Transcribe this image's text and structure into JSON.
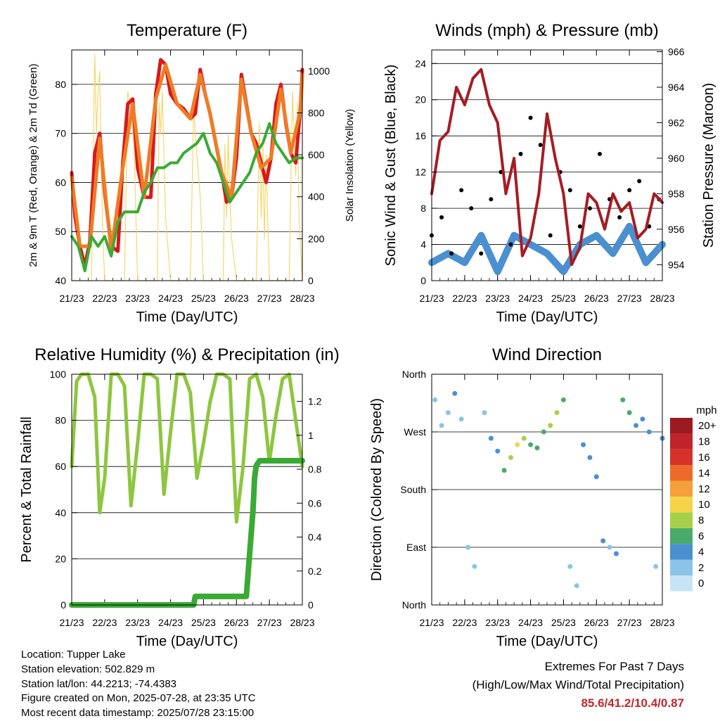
{
  "chart_data": [
    {
      "type": "line",
      "title": "Temperature (F)",
      "xlabel": "Time (Day/UTC)",
      "ylabel": "2m & 9m T (Red, Orange) & 2m Td (Green)",
      "ylabel_right": "Solar Insolation (Yellow)",
      "x_ticks": [
        "21/23",
        "22/23",
        "23/23",
        "24/23",
        "25/23",
        "26/23",
        "27/23",
        "28/23"
      ],
      "ylim": [
        40,
        87
      ],
      "y_ticks": [
        40,
        50,
        60,
        70,
        80
      ],
      "ylim_right": [
        0,
        1100
      ],
      "y_ticks_right": [
        0,
        200,
        400,
        600,
        800,
        1000
      ],
      "grid": "horizontal",
      "series": [
        {
          "name": "2m T",
          "color": "#d7191c",
          "x": [
            0,
            0.1,
            0.25,
            0.4,
            0.55,
            0.7,
            0.85,
            1.0,
            1.2,
            1.4,
            1.55,
            1.7,
            1.85,
            2.0,
            2.2,
            2.4,
            2.55,
            2.7,
            2.85,
            3.0,
            3.2,
            3.4,
            3.6,
            3.75,
            3.9,
            4.05,
            4.2,
            4.4,
            4.55,
            4.7,
            4.85,
            5.0,
            5.15,
            5.3,
            5.45,
            5.6,
            5.75,
            5.9,
            6.05,
            6.2,
            6.35,
            6.5,
            6.65,
            6.8,
            6.95,
            7.0
          ],
          "y": [
            62,
            53,
            47,
            43,
            48,
            66,
            70,
            58,
            47,
            46,
            64,
            76,
            77,
            63,
            57,
            57,
            78,
            85,
            84,
            78,
            76,
            75,
            73,
            74,
            83,
            78,
            74,
            67,
            62,
            56,
            57,
            65,
            82,
            76,
            70,
            68,
            64,
            60,
            65,
            76,
            80,
            72,
            66,
            64,
            76,
            83
          ]
        },
        {
          "name": "9m T",
          "color": "#f07c22",
          "x": [
            0,
            0.25,
            0.55,
            0.85,
            1.2,
            1.55,
            1.85,
            2.2,
            2.55,
            2.85,
            3.2,
            3.6,
            3.9,
            4.2,
            4.55,
            4.85,
            5.15,
            5.45,
            5.75,
            6.05,
            6.35,
            6.65,
            6.95,
            7.0
          ],
          "y": [
            61,
            47,
            47,
            69,
            46,
            63,
            76,
            57,
            77,
            84,
            76,
            73,
            82,
            74,
            62,
            57,
            81,
            70,
            63,
            65,
            79,
            66,
            75,
            82
          ]
        },
        {
          "name": "2m Td",
          "color": "#3aaa35",
          "x": [
            0,
            0.2,
            0.4,
            0.6,
            0.8,
            1.0,
            1.2,
            1.4,
            1.6,
            1.8,
            2.0,
            2.2,
            2.4,
            2.6,
            2.8,
            3.0,
            3.2,
            3.4,
            3.6,
            3.8,
            4.0,
            4.2,
            4.4,
            4.6,
            4.8,
            5.0,
            5.2,
            5.4,
            5.6,
            5.8,
            6.0,
            6.2,
            6.4,
            6.6,
            6.8,
            7.0
          ],
          "y": [
            49,
            47,
            42,
            49,
            47,
            49,
            45,
            52,
            54,
            54,
            54,
            58,
            60,
            63,
            63,
            64,
            64,
            66,
            67,
            68,
            70,
            66,
            64,
            60,
            56,
            58,
            60,
            62,
            66,
            68,
            72,
            68,
            66,
            64,
            65,
            65
          ]
        },
        {
          "name": "Solar",
          "axis": "right",
          "color": "#f5d76e",
          "x": [
            0,
            0.6,
            0.65,
            0.7,
            0.75,
            0.8,
            0.85,
            0.9,
            0.95,
            1.0,
            1.6,
            1.7,
            1.8,
            1.9,
            2.0,
            2.6,
            2.65,
            2.7,
            2.75,
            2.8,
            2.85,
            3.0,
            3.6,
            3.7,
            3.8,
            3.9,
            4.0,
            4.6,
            4.65,
            4.7,
            4.75,
            4.8,
            4.85,
            5.0,
            5.6,
            5.7,
            5.75,
            5.8,
            5.85,
            5.9,
            6.0,
            6.6,
            6.7,
            6.8,
            6.85,
            6.9,
            7.0
          ],
          "y": [
            0,
            0,
            600,
            1080,
            700,
            900,
            1000,
            500,
            200,
            0,
            0,
            900,
            820,
            600,
            0,
            0,
            850,
            700,
            900,
            600,
            300,
            0,
            0,
            820,
            600,
            400,
            0,
            0,
            650,
            300,
            700,
            400,
            200,
            0,
            0,
            750,
            300,
            650,
            200,
            600,
            0,
            0,
            900,
            500,
            850,
            300,
            0
          ]
        }
      ]
    },
    {
      "type": "scatter",
      "title": "Winds (mph) & Pressure (mb)",
      "xlabel": "Time (Day/UTC)",
      "ylabel": "Sonic Wind & Gust (Blue, Black)",
      "ylabel_right": "Station Pressure (Maroon)",
      "x_ticks": [
        "21/23",
        "22/23",
        "23/23",
        "24/23",
        "25/23",
        "26/23",
        "27/23",
        "28/23"
      ],
      "ylim": [
        0,
        25.5
      ],
      "y_ticks": [
        0,
        4,
        8,
        12,
        16,
        20,
        24
      ],
      "ylim_right": [
        953.1,
        966.1
      ],
      "y_ticks_right": [
        954,
        956,
        958,
        960,
        962,
        964,
        966
      ],
      "grid": "horizontal",
      "series": [
        {
          "name": "Pressure",
          "axis": "right",
          "color": "#a51c24",
          "x": [
            0,
            0.25,
            0.5,
            0.75,
            1.0,
            1.25,
            1.5,
            1.75,
            2.0,
            2.25,
            2.5,
            2.75,
            3.0,
            3.25,
            3.5,
            3.75,
            4.0,
            4.25,
            4.5,
            4.75,
            5.0,
            5.25,
            5.5,
            5.75,
            6.0,
            6.25,
            6.5,
            6.75,
            7.0
          ],
          "y": [
            958,
            961,
            961.5,
            964,
            963,
            964.5,
            965,
            963,
            962,
            958,
            960,
            954.5,
            955.5,
            958,
            962.5,
            960,
            958,
            954,
            955,
            958,
            957.5,
            956,
            958,
            957,
            957.5,
            955.5,
            956,
            958,
            957.5
          ]
        },
        {
          "name": "Wind",
          "color": "#4a90d0",
          "x": [
            0,
            0.5,
            1.0,
            1.5,
            2.0,
            2.5,
            3.0,
            3.5,
            4.0,
            4.5,
            5.0,
            5.5,
            6.0,
            6.5,
            7.0
          ],
          "y": [
            2,
            3,
            2,
            5,
            1,
            5,
            4,
            3,
            1,
            4,
            5,
            3,
            6,
            2,
            4
          ]
        },
        {
          "name": "Gust",
          "color": "#000000",
          "x": [
            0,
            0.3,
            0.6,
            0.9,
            1.2,
            1.5,
            1.8,
            2.1,
            2.4,
            2.7,
            3.0,
            3.3,
            3.6,
            3.9,
            4.2,
            4.5,
            4.8,
            5.1,
            5.4,
            5.7,
            6.0,
            6.3,
            6.6,
            6.9
          ],
          "y": [
            5,
            7,
            3,
            10,
            8,
            3,
            9,
            12,
            4,
            14,
            18,
            15,
            5,
            12,
            10,
            6,
            8,
            14,
            9,
            7,
            10,
            11,
            6,
            9
          ]
        }
      ]
    },
    {
      "type": "line",
      "title": "Relative Humidity (%) & Precipitation (in)",
      "xlabel": "Time (Day/UTC)",
      "ylabel": "Percent & Total Rainfall",
      "x_ticks": [
        "21/23",
        "22/23",
        "23/23",
        "24/23",
        "25/23",
        "26/23",
        "27/23",
        "28/23"
      ],
      "ylim": [
        0,
        100
      ],
      "y_ticks": [
        0,
        20,
        40,
        60,
        80,
        100
      ],
      "ylim_right": [
        0,
        1.36
      ],
      "y_ticks_right": [
        0.0,
        0.2,
        0.4,
        0.6,
        0.8,
        1.0,
        1.2
      ],
      "grid": "horizontal",
      "series": [
        {
          "name": "RH",
          "color": "#8dc63f",
          "x": [
            0,
            0.15,
            0.3,
            0.5,
            0.7,
            0.85,
            1.0,
            1.2,
            1.4,
            1.6,
            1.8,
            2.0,
            2.2,
            2.4,
            2.6,
            2.8,
            3.0,
            3.2,
            3.4,
            3.6,
            3.8,
            4.0,
            4.2,
            4.4,
            4.6,
            4.8,
            5.0,
            5.2,
            5.4,
            5.6,
            5.8,
            6.0,
            6.2,
            6.4,
            6.6,
            6.8,
            7.0
          ],
          "y": [
            60,
            97,
            100,
            100,
            90,
            40,
            55,
            100,
            100,
            95,
            43,
            70,
            100,
            100,
            98,
            48,
            75,
            100,
            100,
            92,
            55,
            70,
            88,
            100,
            100,
            98,
            36,
            60,
            98,
            100,
            90,
            62,
            82,
            98,
            100,
            80,
            60
          ]
        },
        {
          "name": "Precip",
          "axis": "right",
          "color": "#3aaa35",
          "x": [
            0,
            1,
            2,
            3,
            3.7,
            3.75,
            4.5,
            5.3,
            5.4,
            5.5,
            5.55,
            5.6,
            5.7,
            6.0,
            7.0
          ],
          "y": [
            0,
            0,
            0,
            0,
            0.0,
            0.05,
            0.05,
            0.05,
            0.3,
            0.55,
            0.75,
            0.82,
            0.85,
            0.85,
            0.85
          ]
        }
      ]
    },
    {
      "type": "scatter",
      "title": "Wind Direction",
      "xlabel": "Time (Day/UTC)",
      "ylabel": "Direction (Colored By Speed)",
      "x_ticks": [
        "21/23",
        "22/23",
        "23/23",
        "24/23",
        "25/23",
        "26/23",
        "27/23",
        "28/23"
      ],
      "y_ticks": [
        "North",
        "East",
        "South",
        "West",
        "North"
      ],
      "ylim": [
        0,
        360
      ],
      "grid": "horizontal",
      "legend": {
        "title": "mph",
        "labels": [
          "0",
          "2",
          "4",
          "6",
          "8",
          "10",
          "12",
          "14",
          "16",
          "18",
          "20+"
        ],
        "colors": [
          "#c6e4f5",
          "#8bc4e8",
          "#4a90d0",
          "#4aaa6a",
          "#a7d04a",
          "#f5d44a",
          "#f5a03a",
          "#ee6a2a",
          "#d6322a",
          "#c0232a",
          "#9b1a20"
        ],
        "placement": "right"
      },
      "series": [
        {
          "name": "Direction",
          "x": [
            0.1,
            0.3,
            0.5,
            0.7,
            0.9,
            1.1,
            1.3,
            1.6,
            1.8,
            2.0,
            2.2,
            2.4,
            2.6,
            2.8,
            3.0,
            3.2,
            3.4,
            3.6,
            3.8,
            4.0,
            4.2,
            4.4,
            4.6,
            4.8,
            5.0,
            5.2,
            5.4,
            5.6,
            5.8,
            6.0,
            6.2,
            6.4,
            6.6,
            6.8,
            7.0
          ],
          "y": [
            320,
            280,
            300,
            330,
            290,
            90,
            60,
            300,
            260,
            240,
            210,
            230,
            250,
            260,
            250,
            245,
            270,
            280,
            300,
            320,
            60,
            30,
            250,
            230,
            200,
            100,
            90,
            80,
            320,
            300,
            280,
            290,
            270,
            60,
            260
          ],
          "speed": [
            1,
            1,
            2,
            3,
            2,
            2,
            1,
            2,
            3,
            4,
            6,
            7,
            9,
            8,
            6,
            5,
            6,
            8,
            7,
            5,
            1,
            2,
            3,
            4,
            3,
            3,
            2,
            4,
            6,
            5,
            4,
            3,
            3,
            2,
            4
          ]
        }
      ]
    }
  ],
  "info": {
    "location": "Location: Tupper Lake",
    "elevation": "Station elevation: 502.829 m",
    "latlon": "Station lat/lon: 44.2213; -74.4383",
    "created": "Figure created on Mon, 2025-07-28, at 23:35 UTC",
    "recent": "Most recent data timestamp: 2025/07/28 23:15:00"
  },
  "extremes": {
    "title": "Extremes For Past 7 Days",
    "subtitle": "(High/Low/Max Wind/Total Precipitation)",
    "values": "85.6/41.2/10.4/0.87"
  }
}
